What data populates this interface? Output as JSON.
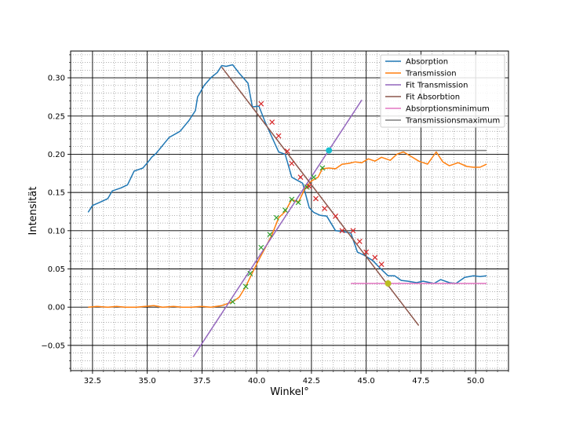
{
  "chart_data": {
    "type": "line",
    "xlabel": "Winkel°",
    "ylabel": "Intensität",
    "xlim": [
      31.5,
      51.5
    ],
    "ylim": [
      -0.083,
      0.335
    ],
    "xticks": [
      "32.5",
      "35.0",
      "37.5",
      "40.0",
      "42.5",
      "45.0",
      "47.5",
      "50.0"
    ],
    "yticks": [
      "−0.05",
      "0.00",
      "0.05",
      "0.10",
      "0.15",
      "0.20",
      "0.25",
      "0.30"
    ],
    "grid": "major and minor",
    "legend_position": "top-right",
    "series": [
      {
        "name": "Absorption",
        "color": "#1f77b4",
        "style": "line",
        "x": [
          32.3,
          32.5,
          32.9,
          33.2,
          33.4,
          33.8,
          34.1,
          34.4,
          34.8,
          35.1,
          35.2,
          35.4,
          35.8,
          36.0,
          36.5,
          36.9,
          37.2,
          37.3,
          37.6,
          37.9,
          38.2,
          38.4,
          38.6,
          38.9,
          39.2,
          39.6,
          39.8,
          40.1,
          40.4,
          40.7,
          41.0,
          41.3,
          41.6,
          42.1,
          42.4,
          42.6,
          42.9,
          43.2,
          43.6,
          43.9,
          44.3,
          44.6,
          44.9,
          45.3,
          45.6,
          46.0,
          46.3,
          46.6,
          46.9,
          47.3,
          47.6,
          48.1,
          48.4,
          48.8,
          49.1,
          49.5,
          49.9,
          50.2,
          50.5
        ],
        "y": [
          0.124,
          0.133,
          0.138,
          0.142,
          0.152,
          0.156,
          0.16,
          0.178,
          0.182,
          0.192,
          0.196,
          0.201,
          0.215,
          0.222,
          0.23,
          0.244,
          0.257,
          0.275,
          0.29,
          0.3,
          0.307,
          0.316,
          0.315,
          0.317,
          0.306,
          0.293,
          0.262,
          0.263,
          0.241,
          0.222,
          0.203,
          0.2,
          0.17,
          0.162,
          0.13,
          0.124,
          0.12,
          0.119,
          0.1,
          0.099,
          0.097,
          0.072,
          0.068,
          0.061,
          0.052,
          0.041,
          0.041,
          0.035,
          0.034,
          0.032,
          0.034,
          0.031,
          0.036,
          0.032,
          0.031,
          0.039,
          0.041,
          0.04,
          0.041
        ]
      },
      {
        "name": "Transmission",
        "color": "#ff7f0e",
        "style": "line",
        "x": [
          32.3,
          32.7,
          33.2,
          33.6,
          34.0,
          34.5,
          34.9,
          35.3,
          35.7,
          36.2,
          36.6,
          37.0,
          37.5,
          37.9,
          38.4,
          38.9,
          39.2,
          39.5,
          39.8,
          40.1,
          40.4,
          40.7,
          41.0,
          41.3,
          41.6,
          41.9,
          42.2,
          42.5,
          42.8,
          43.0,
          43.3,
          43.6,
          43.9,
          44.2,
          44.5,
          44.8,
          45.1,
          45.4,
          45.7,
          46.1,
          46.4,
          46.7,
          47.0,
          47.4,
          47.8,
          48.2,
          48.5,
          48.8,
          49.2,
          49.6,
          49.9,
          50.2,
          50.5
        ],
        "y": [
          0.0,
          0.001,
          0.0,
          0.001,
          0.0,
          0.0,
          0.001,
          0.002,
          0.0,
          0.001,
          0.0,
          0.0,
          0.001,
          0.0,
          0.002,
          0.007,
          0.013,
          0.027,
          0.045,
          0.062,
          0.078,
          0.095,
          0.117,
          0.125,
          0.141,
          0.137,
          0.155,
          0.165,
          0.17,
          0.181,
          0.182,
          0.181,
          0.187,
          0.188,
          0.19,
          0.189,
          0.194,
          0.191,
          0.196,
          0.192,
          0.2,
          0.203,
          0.198,
          0.191,
          0.187,
          0.203,
          0.19,
          0.185,
          0.189,
          0.184,
          0.183,
          0.183,
          0.187
        ]
      },
      {
        "name": "Fit Transmission",
        "color": "#9467bd",
        "style": "line",
        "x": [
          37.1,
          44.8
        ],
        "y": [
          -0.065,
          0.271
        ]
      },
      {
        "name": "Fit Absorbtion",
        "color": "#8c564b",
        "style": "line",
        "x": [
          38.4,
          47.4
        ],
        "y": [
          0.314,
          -0.024
        ]
      },
      {
        "name": "Absorptionsminimum",
        "color": "#e377c2",
        "style": "line",
        "x": [
          44.3,
          50.5
        ],
        "y": [
          0.031,
          0.031
        ]
      },
      {
        "name": "Transmissionsmaximum",
        "color": "#7f7f7f",
        "style": "line",
        "x": [
          41.6,
          50.5
        ],
        "y": [
          0.205,
          0.205
        ]
      },
      {
        "color": "#2ca02c",
        "style": "x-marker",
        "x": [
          38.9,
          39.5,
          39.7,
          40.2,
          40.6,
          40.9,
          41.3,
          41.6,
          41.9,
          42.3,
          42.6,
          43.0
        ],
        "y": [
          0.007,
          0.027,
          0.044,
          0.078,
          0.095,
          0.117,
          0.127,
          0.141,
          0.137,
          0.157,
          0.17,
          0.182
        ]
      },
      {
        "color": "#d62728",
        "style": "x-marker",
        "x": [
          40.2,
          40.7,
          41.0,
          41.4,
          41.6,
          42.0,
          42.4,
          42.7,
          43.1,
          43.6,
          43.9,
          44.4,
          44.7,
          45.0,
          45.4,
          45.7
        ],
        "y": [
          0.266,
          0.242,
          0.224,
          0.204,
          0.188,
          0.17,
          0.158,
          0.142,
          0.129,
          0.119,
          0.1,
          0.1,
          0.086,
          0.072,
          0.065,
          0.056
        ]
      },
      {
        "color": "#17becf",
        "style": "dot",
        "x": [
          43.3
        ],
        "y": [
          0.205
        ]
      },
      {
        "color": "#bcbd22",
        "style": "dot",
        "x": [
          46.0
        ],
        "y": [
          0.031
        ]
      }
    ]
  },
  "legend_items": [
    {
      "label": "Absorption",
      "color": "#1f77b4"
    },
    {
      "label": "Transmission",
      "color": "#ff7f0e"
    },
    {
      "label": "Fit Transmission",
      "color": "#9467bd"
    },
    {
      "label": "Fit Absorbtion",
      "color": "#8c564b"
    },
    {
      "label": "Absorptionsminimum",
      "color": "#e377c2"
    },
    {
      "label": "Transmissionsmaximum",
      "color": "#7f7f7f"
    }
  ]
}
